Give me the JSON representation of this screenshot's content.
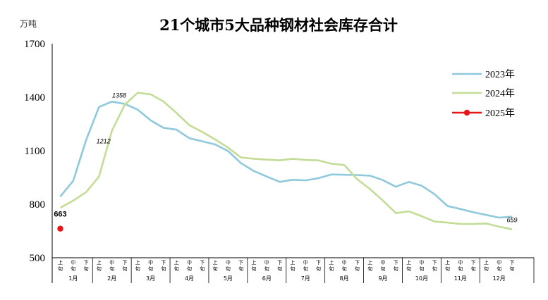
{
  "chart_data": {
    "type": "line",
    "title": "21个城市5大品种钢材社会库存合计",
    "unit_label": "万吨",
    "ylim": [
      500,
      1700
    ],
    "yticks": [
      500,
      800,
      1100,
      1400,
      1700
    ],
    "period_labels": [
      "上旬",
      "中旬",
      "下旬"
    ],
    "months": [
      "1月",
      "2月",
      "3月",
      "4月",
      "5月",
      "6月",
      "7月",
      "8月",
      "9月",
      "10月",
      "11月",
      "12月"
    ],
    "grid": false,
    "legend_position": "right",
    "series": [
      {
        "name": "2023年",
        "color": "#8ec9dc",
        "values": [
          843,
          931,
          1160,
          1345,
          1375,
          1362,
          1330,
          1270,
          1228,
          1218,
          1170,
          1153,
          1135,
          1098,
          1030,
          986,
          955,
          925,
          937,
          934,
          946,
          967,
          965,
          964,
          960,
          935,
          898,
          925,
          904,
          856,
          790,
          773,
          755,
          740,
          725,
          730
        ]
      },
      {
        "name": "2024年",
        "color": "#c3dc96",
        "values": [
          780,
          820,
          868,
          955,
          1212,
          1358,
          1425,
          1416,
          1375,
          1312,
          1243,
          1205,
          1163,
          1117,
          1062,
          1055,
          1050,
          1046,
          1055,
          1048,
          1046,
          1027,
          1020,
          940,
          885,
          820,
          750,
          760,
          733,
          703,
          697,
          690,
          689,
          692,
          674,
          659
        ]
      },
      {
        "name": "2025年",
        "color": "#e8141a",
        "values": [
          663
        ]
      }
    ],
    "annotations": [
      {
        "text": "1212",
        "series": 1,
        "index": 4
      },
      {
        "text": "1358",
        "series": 1,
        "index": 5
      },
      {
        "text": "659",
        "series": 1,
        "index": 35
      },
      {
        "text": "663",
        "series": 2,
        "index": 0
      }
    ]
  }
}
